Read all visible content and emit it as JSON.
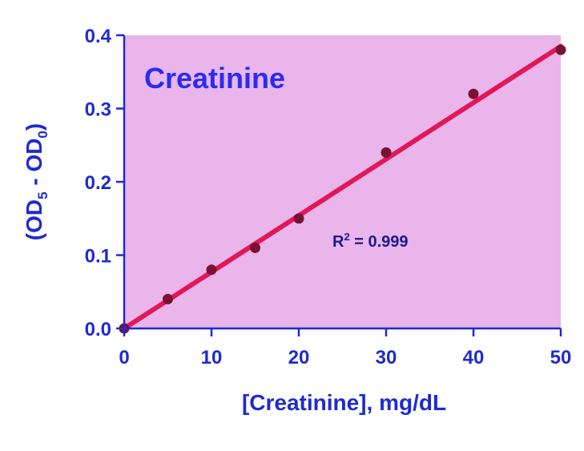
{
  "chart_data": {
    "type": "scatter",
    "title": "Creatinine",
    "xlabel": "[Creatinine], mg/dL",
    "ylabel_parts": {
      "p1": "(OD",
      "sub1": "5",
      "p2": " - OD",
      "sub2": "0",
      "p3": ")"
    },
    "annotation": {
      "r_prefix": "R",
      "r_sup": "2",
      "r_rest": " = 0.999"
    },
    "xlim": [
      0,
      50
    ],
    "ylim": [
      0,
      0.4
    ],
    "x_ticks": [
      0,
      10,
      20,
      30,
      40,
      50
    ],
    "x_tick_labels": [
      "0",
      "10",
      "20",
      "30",
      "40",
      "50"
    ],
    "y_ticks": [
      0,
      0.1,
      0.2,
      0.3,
      0.4
    ],
    "y_tick_labels": [
      "0.0",
      "0.1",
      "0.2",
      "0.3",
      "0.4"
    ],
    "series": [
      {
        "x": [
          0,
          5,
          10,
          15,
          20,
          30,
          40,
          50
        ],
        "y": [
          0.0,
          0.04,
          0.08,
          0.11,
          0.15,
          0.24,
          0.32,
          0.38
        ]
      }
    ],
    "fit_line": {
      "x": [
        0,
        50
      ],
      "y": [
        0.0,
        0.385
      ]
    },
    "grid": false,
    "colors": {
      "plot_bg": "#e9b5ea",
      "axis": "#1f2ad1",
      "fit_line": "#e0185a",
      "points": "#7a1130",
      "title": "#2b2cf0"
    }
  }
}
